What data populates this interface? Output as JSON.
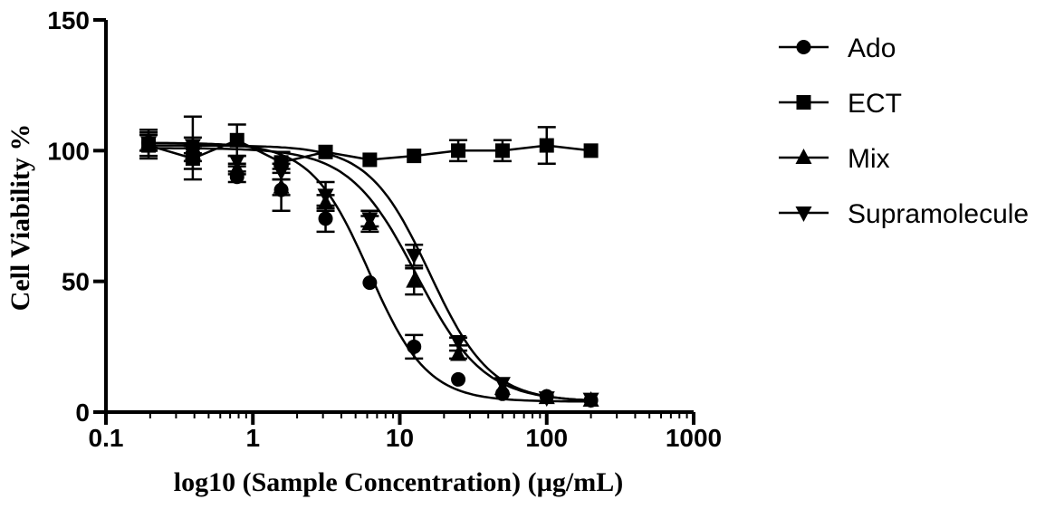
{
  "chart_data": {
    "type": "line",
    "xlabel": "log10 (Sample Concentration) (µg/mL)",
    "ylabel": "Cell Viability %",
    "xscale": "log",
    "xlim": [
      0.1,
      1000
    ],
    "ylim": [
      0,
      150
    ],
    "xticks": [
      0.1,
      1,
      10,
      100,
      1000
    ],
    "xtick_labels": [
      "0.1",
      "1",
      "10",
      "100",
      "1000"
    ],
    "yticks": [
      0,
      50,
      100,
      150
    ],
    "ytick_labels": [
      "0",
      "50",
      "100",
      "150"
    ],
    "grid": false,
    "legend_position": "right",
    "x": [
      0.195,
      0.39,
      0.78,
      1.56,
      3.125,
      6.25,
      12.5,
      25,
      50,
      100,
      200
    ],
    "series": [
      {
        "name": "Ado",
        "marker": "circle",
        "values": [
          103,
          101,
          90,
          85,
          74,
          49.5,
          25,
          12.5,
          7,
          6,
          4.5
        ],
        "errors": [
          5,
          12,
          2,
          8,
          5,
          1,
          4.5,
          1,
          1,
          1,
          1
        ]
      },
      {
        "name": "ECT",
        "marker": "square",
        "values": [
          102,
          97,
          104,
          95.5,
          99.5,
          96.5,
          98,
          100,
          100,
          102,
          100
        ],
        "errors": [
          5,
          4,
          6,
          4,
          1,
          1,
          1,
          4,
          4,
          7,
          1
        ]
      },
      {
        "name": "Mix",
        "marker": "triangle-up",
        "values": [
          103,
          99,
          93,
          86,
          80,
          72,
          50,
          22,
          9,
          5.5,
          4.5
        ],
        "errors": [
          3,
          3,
          2,
          3,
          3,
          3,
          5,
          1.5,
          1,
          1,
          1
        ]
      },
      {
        "name": "Supramolecule",
        "marker": "triangle-down",
        "values": [
          103,
          102,
          96,
          92,
          83,
          74,
          60,
          27,
          11,
          5.5,
          5
        ],
        "errors": [
          3,
          3,
          2,
          3,
          5,
          3,
          4,
          1.5,
          1,
          1,
          1
        ]
      }
    ]
  }
}
